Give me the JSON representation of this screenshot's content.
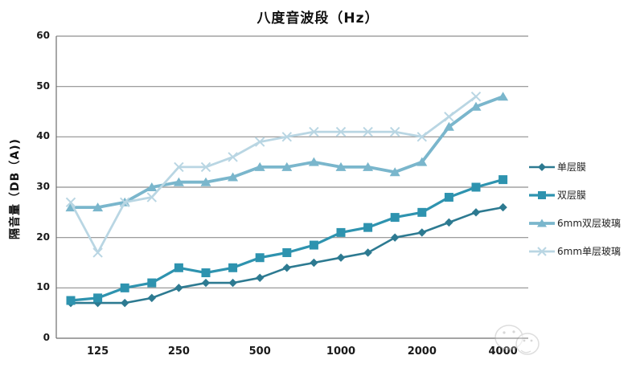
{
  "title": "八度音波段（Hz）",
  "y_axis": {
    "title": "隔音量（DB（A))",
    "ticks": [
      0,
      10,
      20,
      30,
      40,
      50,
      60
    ]
  },
  "x_axis": {
    "tick_labels": [
      "125",
      "250",
      "500",
      "1000",
      "2000",
      "4000"
    ],
    "tick_indices": [
      1,
      4,
      7,
      10,
      13,
      16
    ]
  },
  "colors": {
    "gridline": "#8f8f8f",
    "axis": "#6e6e6e",
    "text": "#1a1a1a"
  },
  "watermark": "faint circular doodle stamp over 4000 label",
  "chart_data": {
    "type": "line",
    "title": "八度音波段（Hz）",
    "xlabel": "",
    "ylabel": "隔音量（DB（A))",
    "ylim": [
      0,
      60
    ],
    "y_tick_step": 10,
    "num_categories": 17,
    "x_tick_labels_shown": [
      "125",
      "250",
      "500",
      "1000",
      "2000",
      "4000"
    ],
    "grid": "horizontal",
    "legend_position": "right",
    "series": [
      {
        "name": "单层膜",
        "marker": "diamond",
        "color": "#2D7A91",
        "values": [
          7,
          7,
          7,
          8,
          10,
          11,
          11,
          12,
          14,
          15,
          16,
          17,
          20,
          21,
          23,
          25,
          26
        ]
      },
      {
        "name": "双层膜",
        "marker": "square",
        "color": "#2E93AF",
        "values": [
          7.5,
          8,
          10,
          11,
          14,
          13,
          14,
          16,
          17,
          18.5,
          21,
          22,
          24,
          25,
          28,
          30,
          31.5
        ]
      },
      {
        "name": "6mm双层玻璃",
        "marker": "triangle",
        "color": "#7AB6CC",
        "values": [
          26,
          26,
          27,
          30,
          31,
          31,
          32,
          34,
          34,
          35,
          34,
          34,
          33,
          35,
          42,
          46,
          48
        ]
      },
      {
        "name": "6mm单层玻璃",
        "marker": "x",
        "color": "#B9D6E3",
        "values": [
          27,
          17,
          27,
          28,
          34,
          34,
          36,
          39,
          40,
          41,
          41,
          41,
          41,
          40,
          44,
          48,
          null
        ]
      }
    ]
  }
}
